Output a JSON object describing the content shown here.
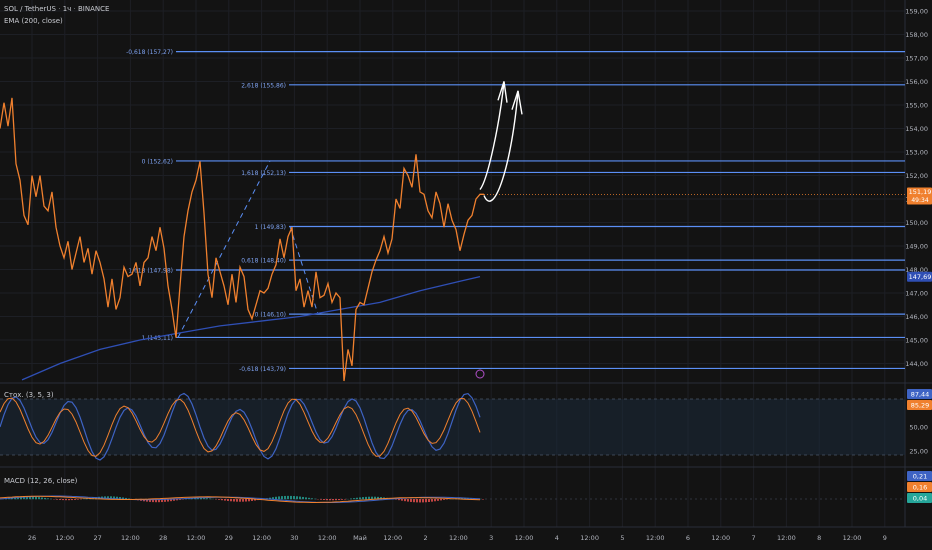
{
  "symbol": {
    "name": "SOL / TetherUS",
    "interval": "1ч",
    "exchange": "BINANCE",
    "sep": "·"
  },
  "indicators": {
    "ema_label": "EMA (200, close)",
    "stoch_label": "Стох. (3, 5, 3)",
    "macd_label": "MACD (12, 26, close)"
  },
  "colors": {
    "background": "#131313",
    "price_line": "#f0802e",
    "ema_line": "#2f4fb5",
    "fib_line": "#5b8ff5",
    "stoch_k": "#3e63c4",
    "stoch_d": "#f0802e",
    "stoch_band": "#1b2a3a",
    "macd_line": "#3e63c4",
    "signal_line": "#f0802e",
    "hist_up": "#26a69a",
    "hist_down": "#ef5350",
    "annotation": "#ffffff"
  },
  "price_axis": {
    "labels": [
      "159,00",
      "158,00",
      "157,00",
      "156,00",
      "155,00",
      "154,00",
      "153,00",
      "152,00",
      "151,00",
      "150,00",
      "149,00",
      "148,00",
      "147,00",
      "146,00",
      "145,00",
      "144,00"
    ],
    "current_price": "151,19",
    "countdown": "49:34",
    "ema_value": "147,69"
  },
  "stoch_axis": {
    "labels": [
      "50,00",
      "25,00"
    ],
    "k_value": "87,44",
    "d_value": "85,29"
  },
  "macd_axis": {
    "macd_value": "0,21",
    "signal_value": "0,16",
    "hist_value": "0,04"
  },
  "time_axis": {
    "labels": [
      "26",
      "12:00",
      "27",
      "12:00",
      "28",
      "12:00",
      "29",
      "12:00",
      "30",
      "12:00",
      "Май",
      "12:00",
      "2",
      "12:00",
      "3",
      "12:00",
      "4",
      "12:00",
      "5",
      "12:00",
      "6",
      "12:00",
      "7",
      "12:00",
      "8",
      "12:00",
      "9"
    ]
  },
  "fib_levels": [
    {
      "label": "-0,618 (157,27)",
      "price": 157.27
    },
    {
      "label": "2,618 (155,86)",
      "price": 155.86
    },
    {
      "label": "0 (152,62)",
      "price": 152.62
    },
    {
      "label": "1,618 (152,13)",
      "price": 152.13
    },
    {
      "label": "1 (149,83)",
      "price": 149.83
    },
    {
      "label": "0,618 (148,40)",
      "price": 148.4
    },
    {
      "label": "1,618 (147,98)",
      "price": 147.98
    },
    {
      "label": "0 (146,10)",
      "price": 146.1
    },
    {
      "label": "1 (145,11)",
      "price": 145.11
    },
    {
      "label": "-0,618 (143,79)",
      "price": 143.79
    }
  ],
  "price_series": [
    [
      0,
      154.0
    ],
    [
      4,
      155.1
    ],
    [
      8,
      154.1
    ],
    [
      12,
      155.3
    ],
    [
      16,
      152.5
    ],
    [
      20,
      151.8
    ],
    [
      24,
      150.3
    ],
    [
      28,
      149.9
    ],
    [
      32,
      152.0
    ],
    [
      36,
      151.1
    ],
    [
      40,
      152.0
    ],
    [
      44,
      150.7
    ],
    [
      48,
      150.5
    ],
    [
      52,
      151.3
    ],
    [
      56,
      149.8
    ],
    [
      60,
      149.0
    ],
    [
      64,
      148.5
    ],
    [
      68,
      149.2
    ],
    [
      72,
      148.0
    ],
    [
      76,
      148.7
    ],
    [
      80,
      149.4
    ],
    [
      84,
      148.3
    ],
    [
      88,
      148.9
    ],
    [
      92,
      147.8
    ],
    [
      96,
      148.8
    ],
    [
      100,
      148.3
    ],
    [
      104,
      147.6
    ],
    [
      108,
      146.4
    ],
    [
      112,
      147.6
    ],
    [
      116,
      146.3
    ],
    [
      120,
      146.8
    ],
    [
      124,
      148.1
    ],
    [
      128,
      147.7
    ],
    [
      132,
      147.8
    ],
    [
      136,
      148.3
    ],
    [
      140,
      147.3
    ],
    [
      144,
      148.3
    ],
    [
      148,
      148.5
    ],
    [
      152,
      149.4
    ],
    [
      156,
      148.8
    ],
    [
      160,
      149.8
    ],
    [
      164,
      148.9
    ],
    [
      168,
      147.3
    ],
    [
      172,
      146.3
    ],
    [
      176,
      145.1
    ],
    [
      180,
      147.3
    ],
    [
      184,
      149.4
    ],
    [
      188,
      150.5
    ],
    [
      192,
      151.3
    ],
    [
      196,
      151.8
    ],
    [
      200,
      152.6
    ],
    [
      204,
      150.4
    ],
    [
      208,
      147.8
    ],
    [
      212,
      146.8
    ],
    [
      216,
      148.5
    ],
    [
      220,
      147.9
    ],
    [
      224,
      147.3
    ],
    [
      228,
      146.5
    ],
    [
      232,
      147.8
    ],
    [
      236,
      146.6
    ],
    [
      240,
      148.1
    ],
    [
      244,
      147.7
    ],
    [
      248,
      146.3
    ],
    [
      252,
      145.9
    ],
    [
      256,
      146.5
    ],
    [
      260,
      147.1
    ],
    [
      264,
      147.0
    ],
    [
      268,
      147.2
    ],
    [
      272,
      147.8
    ],
    [
      276,
      148.2
    ],
    [
      280,
      149.3
    ],
    [
      284,
      148.5
    ],
    [
      288,
      149.4
    ],
    [
      292,
      149.8
    ],
    [
      296,
      147.1
    ],
    [
      300,
      147.6
    ],
    [
      304,
      146.4
    ],
    [
      308,
      147.1
    ],
    [
      312,
      146.4
    ],
    [
      316,
      147.9
    ],
    [
      320,
      146.8
    ],
    [
      324,
      146.9
    ],
    [
      328,
      147.4
    ],
    [
      332,
      146.6
    ],
    [
      336,
      147.0
    ],
    [
      340,
      146.8
    ],
    [
      344,
      142.5
    ],
    [
      348,
      144.6
    ],
    [
      352,
      143.9
    ],
    [
      356,
      146.3
    ],
    [
      360,
      146.6
    ],
    [
      364,
      146.5
    ],
    [
      368,
      147.2
    ],
    [
      372,
      147.9
    ],
    [
      376,
      148.4
    ],
    [
      380,
      148.8
    ],
    [
      384,
      149.4
    ],
    [
      388,
      148.7
    ],
    [
      392,
      149.3
    ],
    [
      396,
      151.0
    ],
    [
      400,
      150.6
    ],
    [
      404,
      152.3
    ],
    [
      408,
      152.0
    ],
    [
      412,
      151.5
    ],
    [
      416,
      152.9
    ],
    [
      420,
      151.3
    ],
    [
      424,
      151.2
    ],
    [
      428,
      150.5
    ],
    [
      432,
      150.2
    ],
    [
      436,
      151.3
    ],
    [
      440,
      150.8
    ],
    [
      444,
      149.8
    ],
    [
      448,
      150.8
    ],
    [
      452,
      150.1
    ],
    [
      456,
      149.7
    ],
    [
      460,
      148.8
    ],
    [
      464,
      149.5
    ],
    [
      468,
      150.1
    ],
    [
      472,
      150.3
    ],
    [
      476,
      151.0
    ],
    [
      480,
      151.2
    ],
    [
      484,
      151.2
    ]
  ],
  "ema_series": [
    [
      22,
      143.3
    ],
    [
      60,
      144.0
    ],
    [
      100,
      144.6
    ],
    [
      140,
      145.0
    ],
    [
      180,
      145.3
    ],
    [
      220,
      145.6
    ],
    [
      260,
      145.8
    ],
    [
      300,
      146.0
    ],
    [
      340,
      146.3
    ],
    [
      380,
      146.6
    ],
    [
      420,
      147.1
    ],
    [
      460,
      147.5
    ],
    [
      480,
      147.7
    ]
  ]
}
